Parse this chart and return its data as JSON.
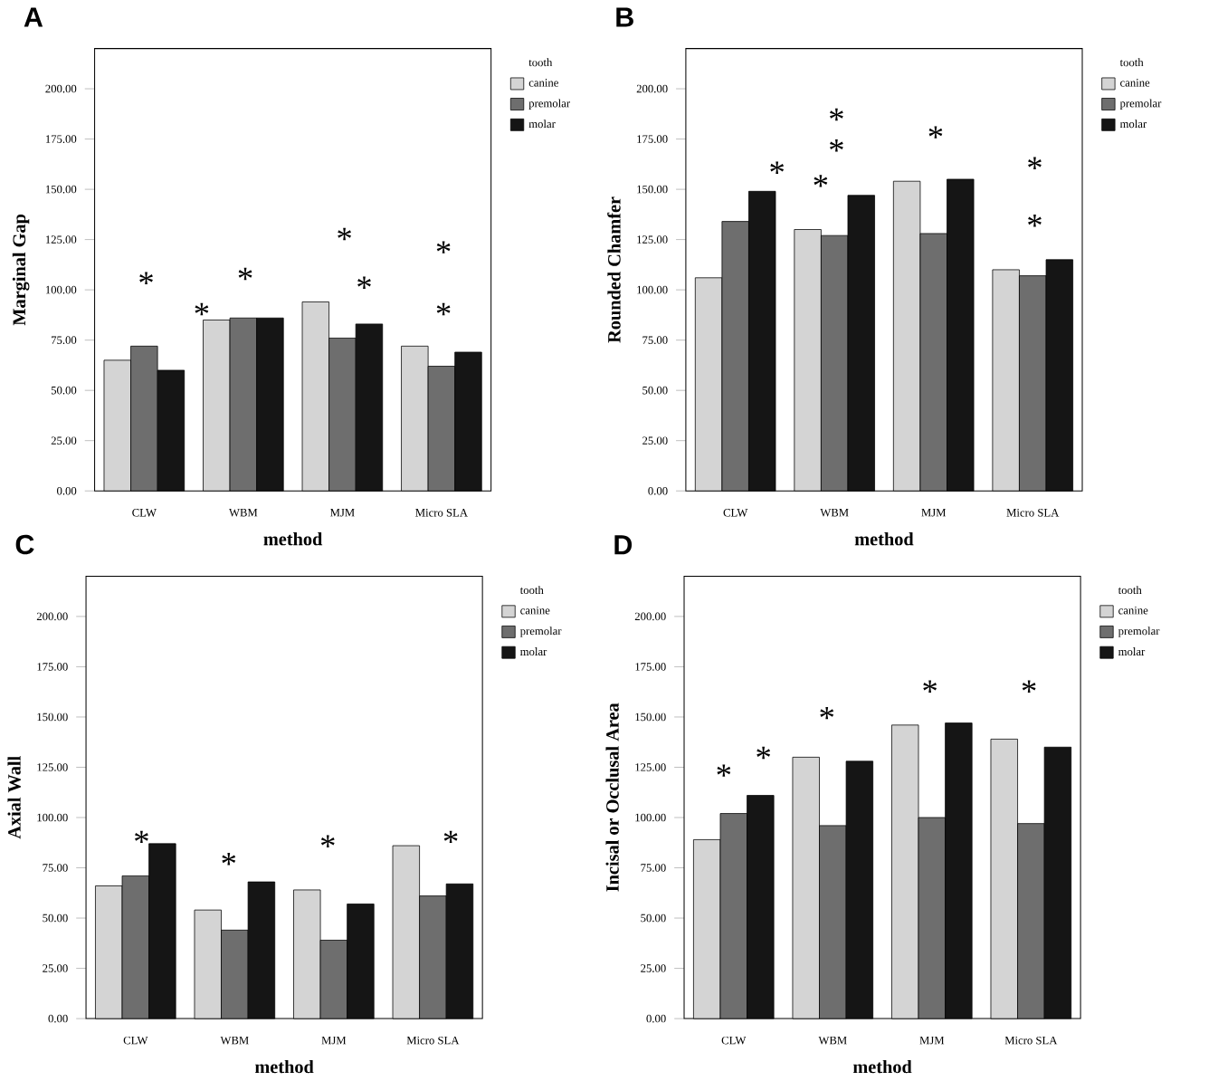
{
  "chart_data": [
    {
      "type": "bar",
      "title": "A",
      "xlabel": "method",
      "ylabel": "Marginal Gap",
      "legend_title": "tooth",
      "legend": "top right",
      "categories": [
        "CLW",
        "WBM",
        "MJM",
        "Micro SLA"
      ],
      "series": [
        {
          "name": "canine",
          "color": "#d4d4d4",
          "values": [
            65,
            85,
            94,
            72
          ]
        },
        {
          "name": "premolar",
          "color": "#6e6e6e",
          "values": [
            72,
            86,
            76,
            62
          ]
        },
        {
          "name": "molar",
          "color": "#151515",
          "values": [
            60,
            86,
            83,
            69
          ]
        }
      ],
      "ylim": [
        0,
        220
      ],
      "yticks": [
        {
          "value": 0,
          "label": "0.00"
        },
        {
          "value": 25,
          "label": "25.00"
        },
        {
          "value": 50,
          "label": "50.00"
        },
        {
          "value": 75,
          "label": "75.00"
        },
        {
          "value": 100,
          "label": "100.00"
        },
        {
          "value": 125,
          "label": "125.00"
        },
        {
          "value": 150,
          "label": "150.00"
        },
        {
          "value": 175,
          "label": "175.00"
        },
        {
          "value": 200,
          "label": "200.00"
        }
      ],
      "annotations": [
        "*",
        "*",
        "*",
        "*",
        "*",
        "*",
        "*"
      ]
    },
    {
      "type": "bar",
      "title": "B",
      "xlabel": "method",
      "ylabel": "Rounded Chamfer",
      "legend_title": "tooth",
      "legend": "top right",
      "categories": [
        "CLW",
        "WBM",
        "MJM",
        "Micro SLA"
      ],
      "series": [
        {
          "name": "canine",
          "color": "#d4d4d4",
          "values": [
            106,
            130,
            154,
            110
          ]
        },
        {
          "name": "premolar",
          "color": "#6e6e6e",
          "values": [
            134,
            127,
            128,
            107
          ]
        },
        {
          "name": "molar",
          "color": "#151515",
          "values": [
            149,
            147,
            155,
            115
          ]
        }
      ],
      "ylim": [
        0,
        220
      ],
      "yticks": [
        {
          "value": 0,
          "label": "0.00"
        },
        {
          "value": 25,
          "label": "25.00"
        },
        {
          "value": 50,
          "label": "50.00"
        },
        {
          "value": 75,
          "label": "75.00"
        },
        {
          "value": 100,
          "label": "100.00"
        },
        {
          "value": 125,
          "label": "125.00"
        },
        {
          "value": 150,
          "label": "150.00"
        },
        {
          "value": 175,
          "label": "175.00"
        },
        {
          "value": 200,
          "label": "200.00"
        }
      ],
      "annotations": [
        "*",
        "*",
        "*",
        "*",
        "*",
        "*",
        "*"
      ]
    },
    {
      "type": "bar",
      "title": "C",
      "xlabel": "method",
      "ylabel": "Axial Wall",
      "legend_title": "tooth",
      "legend": "top right",
      "categories": [
        "CLW",
        "WBM",
        "MJM",
        "Micro SLA"
      ],
      "series": [
        {
          "name": "canine",
          "color": "#d4d4d4",
          "values": [
            66,
            54,
            64,
            86
          ]
        },
        {
          "name": "premolar",
          "color": "#6e6e6e",
          "values": [
            71,
            44,
            39,
            61
          ]
        },
        {
          "name": "molar",
          "color": "#151515",
          "values": [
            87,
            68,
            57,
            67
          ]
        }
      ],
      "ylim": [
        0,
        220
      ],
      "yticks": [
        {
          "value": 0,
          "label": "0.00"
        },
        {
          "value": 25,
          "label": "25.00"
        },
        {
          "value": 50,
          "label": "50.00"
        },
        {
          "value": 75,
          "label": "75.00"
        },
        {
          "value": 100,
          "label": "100.00"
        },
        {
          "value": 125,
          "label": "125.00"
        },
        {
          "value": 150,
          "label": "150.00"
        },
        {
          "value": 175,
          "label": "175.00"
        },
        {
          "value": 200,
          "label": "200.00"
        }
      ],
      "annotations": [
        "*",
        "*",
        "*",
        "*"
      ]
    },
    {
      "type": "bar",
      "title": "D",
      "xlabel": "method",
      "ylabel": "Incisal or Occlusal Area",
      "legend_title": "tooth",
      "legend": "top right",
      "categories": [
        "CLW",
        "WBM",
        "MJM",
        "Micro SLA"
      ],
      "series": [
        {
          "name": "canine",
          "color": "#d4d4d4",
          "values": [
            89,
            130,
            146,
            139
          ]
        },
        {
          "name": "premolar",
          "color": "#6e6e6e",
          "values": [
            102,
            96,
            100,
            97
          ]
        },
        {
          "name": "molar",
          "color": "#151515",
          "values": [
            111,
            128,
            147,
            135
          ]
        }
      ],
      "ylim": [
        0,
        220
      ],
      "yticks": [
        {
          "value": 0,
          "label": "0.00"
        },
        {
          "value": 25,
          "label": "25.00"
        },
        {
          "value": 50,
          "label": "50.00"
        },
        {
          "value": 75,
          "label": "75.00"
        },
        {
          "value": 100,
          "label": "100.00"
        },
        {
          "value": 125,
          "label": "125.00"
        },
        {
          "value": 150,
          "label": "150.00"
        },
        {
          "value": 175,
          "label": "175.00"
        },
        {
          "value": 200,
          "label": "200.00"
        }
      ],
      "annotations": [
        "*",
        "*",
        "*",
        "*",
        "*"
      ]
    }
  ]
}
